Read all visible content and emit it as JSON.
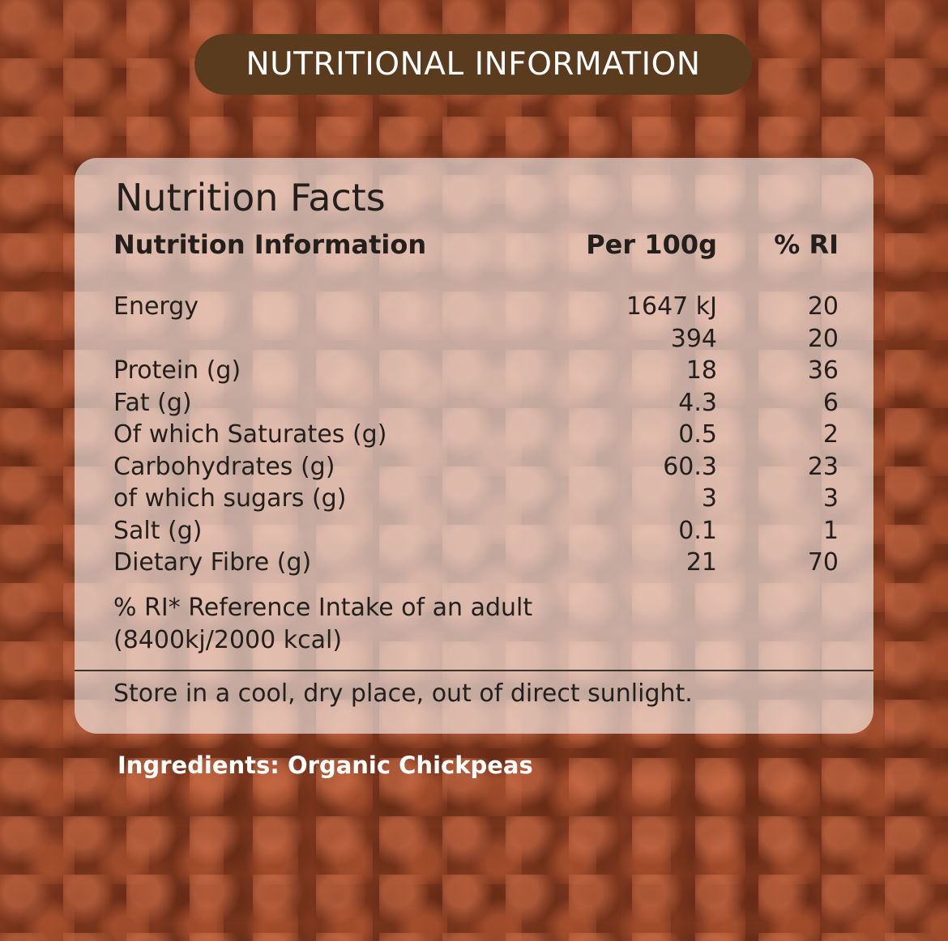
{
  "header": {
    "title": "NUTRITIONAL INFORMATION"
  },
  "panel": {
    "title": "Nutrition Facts",
    "columns": [
      "Nutrition Information",
      "Per 100g",
      "% RI"
    ],
    "rows": [
      {
        "name": "Energy",
        "per_100g": "1647 kJ",
        "ri": "20"
      },
      {
        "per_100g": "394",
        "ri": "20"
      },
      {
        "name": "Protein (g)",
        "per_100g": "18",
        "ri": "36"
      },
      {
        "name": "Fat (g)",
        "per_100g": "4.3",
        "ri": "6"
      },
      {
        "name": "Of which Saturates (g)",
        "per_100g": "0.5",
        "ri": "2"
      },
      {
        "name": "Carbohydrates (g)",
        "per_100g": "60.3",
        "ri": "23"
      },
      {
        "name": "of which sugars (g)",
        "per_100g": "3",
        "ri": "3"
      },
      {
        "name": "Salt (g)",
        "per_100g": "0.1",
        "ri": "1"
      },
      {
        "name": "Dietary Fibre (g)",
        "per_100g": "21",
        "ri": "70"
      }
    ],
    "footnote": [
      "% RI* Reference Intake of an adult",
      "(8400kj/2000 kcal)"
    ],
    "storage": "Store in a cool, dry place, out of direct sunlight."
  },
  "ingredients": "Ingredients: Organic Chickpeas"
}
